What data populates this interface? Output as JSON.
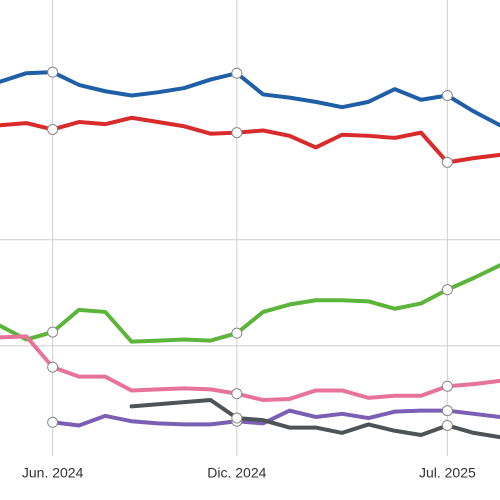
{
  "chart_data": {
    "type": "line",
    "categories": [
      null,
      null,
      "Jun. 2024",
      null,
      null,
      null,
      null,
      null,
      null,
      "Dic. 2024",
      null,
      null,
      null,
      null,
      null,
      null,
      null,
      "Jul. 2025",
      null,
      null
    ],
    "ylim": [
      0,
      42.6
    ],
    "yticks": [
      10,
      20
    ],
    "grid": true,
    "series": [
      {
        "color": "#1f5fa8",
        "values": [
          34.9,
          35.7,
          35.8,
          34.6,
          34.0,
          33.6,
          33.9,
          34.3,
          35.1,
          35.7,
          33.7,
          33.4,
          33.0,
          32.5,
          33.0,
          34.2,
          33.2,
          33.6,
          32.1,
          30.8
        ]
      },
      {
        "color": "#d92b2b",
        "values": [
          30.8,
          31.0,
          30.4,
          31.1,
          30.9,
          31.5,
          31.1,
          30.7,
          30.0,
          30.1,
          30.3,
          29.8,
          28.7,
          29.9,
          29.8,
          29.6,
          30.1,
          27.3,
          27.7,
          28.0
        ]
      },
      {
        "color": "#5cb53a",
        "values": [
          11.9,
          10.6,
          11.3,
          13.4,
          13.2,
          10.4,
          10.5,
          10.6,
          10.5,
          11.2,
          13.2,
          13.9,
          14.3,
          14.3,
          14.2,
          13.5,
          14.0,
          15.3,
          16.4,
          17.6
        ]
      },
      {
        "color": "#e8739a",
        "values": [
          10.8,
          10.9,
          8.0,
          7.1,
          7.1,
          5.8,
          5.9,
          6.0,
          5.9,
          5.5,
          4.9,
          5.0,
          5.8,
          5.8,
          5.1,
          5.3,
          5.3,
          6.2,
          6.4,
          6.7
        ]
      },
      {
        "color": "#7a5fb5",
        "values": [
          null,
          null,
          2.8,
          2.5,
          3.4,
          2.9,
          2.7,
          2.6,
          2.6,
          2.9,
          2.7,
          3.9,
          3.3,
          3.6,
          3.2,
          3.8,
          3.9,
          3.9,
          3.6,
          3.3
        ]
      },
      {
        "color": "#4d5356",
        "values": [
          null,
          null,
          null,
          null,
          null,
          4.3,
          4.5,
          4.7,
          4.9,
          3.2,
          3.0,
          2.3,
          2.3,
          1.8,
          2.6,
          2.0,
          1.6,
          2.5,
          1.8,
          1.4
        ]
      }
    ]
  }
}
